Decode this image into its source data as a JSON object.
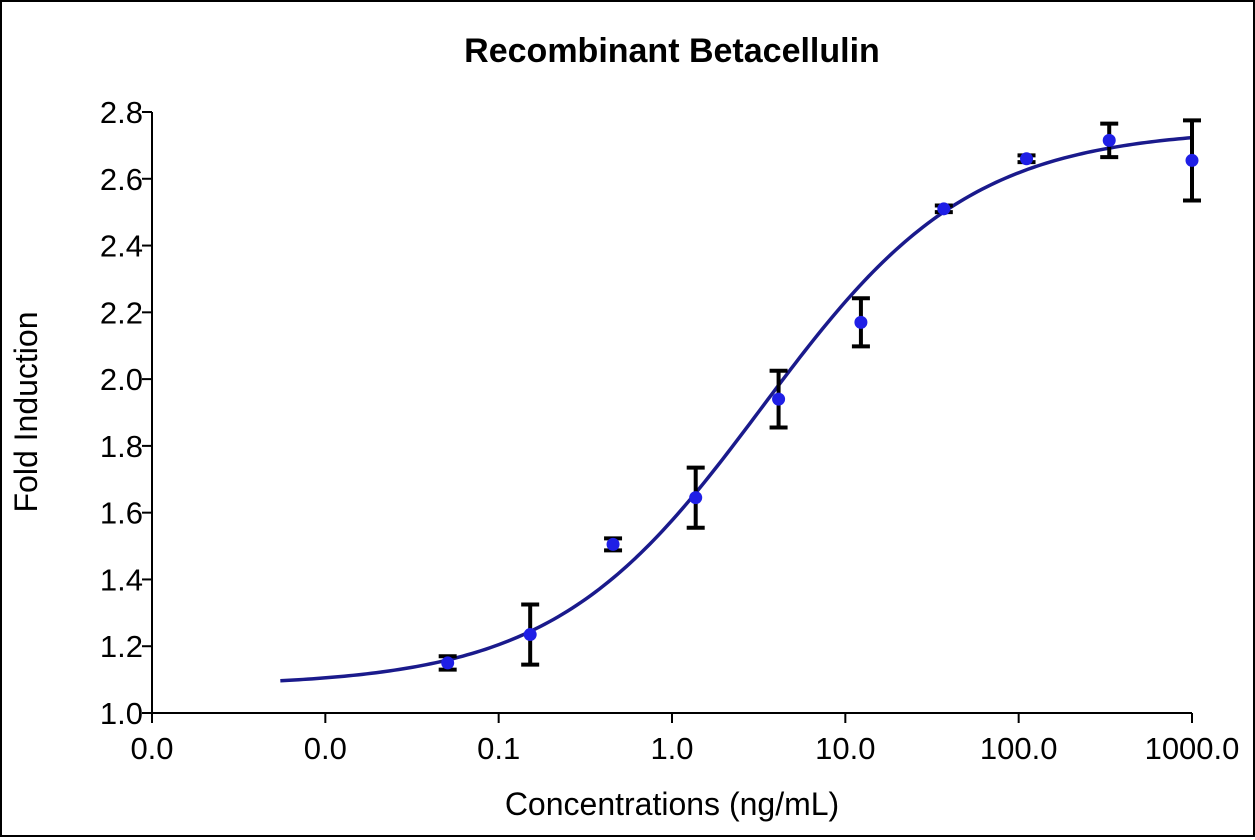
{
  "chart_data": {
    "type": "scatter",
    "title": "Recombinant Betacellulin",
    "xlabel": "Concentrations (ng/mL)",
    "ylabel": "Fold Induction",
    "x_scale": "log",
    "xlim": [
      0.001,
      1000
    ],
    "ylim": [
      1.0,
      2.8
    ],
    "x_ticks": [
      {
        "value": 0.001,
        "label": "0.0"
      },
      {
        "value": 0.01,
        "label": "0.0"
      },
      {
        "value": 0.1,
        "label": "0.1"
      },
      {
        "value": 1,
        "label": "1.0"
      },
      {
        "value": 10,
        "label": "10.0"
      },
      {
        "value": 100,
        "label": "100.0"
      },
      {
        "value": 1000,
        "label": "1000.0"
      }
    ],
    "y_ticks": [
      {
        "value": 1.0,
        "label": "1.0"
      },
      {
        "value": 1.2,
        "label": "1.2"
      },
      {
        "value": 1.4,
        "label": "1.4"
      },
      {
        "value": 1.6,
        "label": "1.6"
      },
      {
        "value": 1.8,
        "label": "1.8"
      },
      {
        "value": 2.0,
        "label": "2.0"
      },
      {
        "value": 2.2,
        "label": "2.2"
      },
      {
        "value": 2.4,
        "label": "2.4"
      },
      {
        "value": 2.6,
        "label": "2.6"
      },
      {
        "value": 2.8,
        "label": "2.8"
      }
    ],
    "grid": false,
    "legend": "none",
    "points": [
      {
        "x": 0.0508,
        "y": 1.15,
        "err": 0.02
      },
      {
        "x": 0.152,
        "y": 1.235,
        "err": 0.09
      },
      {
        "x": 0.457,
        "y": 1.505,
        "err": 0.018
      },
      {
        "x": 1.37,
        "y": 1.645,
        "err": 0.09
      },
      {
        "x": 4.12,
        "y": 1.94,
        "err": 0.085
      },
      {
        "x": 12.3,
        "y": 2.17,
        "err": 0.072
      },
      {
        "x": 37.0,
        "y": 2.51,
        "err": 0.01
      },
      {
        "x": 111,
        "y": 2.66,
        "err": 0.01
      },
      {
        "x": 333,
        "y": 2.715,
        "err": 0.05
      },
      {
        "x": 1000,
        "y": 2.655,
        "err": 0.12
      }
    ],
    "fit": {
      "model": "4PL",
      "bottom": 1.08,
      "top": 2.75,
      "ec50": 3.3,
      "hill": 0.72,
      "x_range": [
        0.0055,
        1000
      ]
    },
    "colors": {
      "points": "#1f1fe6",
      "fit_line": "#1a1a8c",
      "error_bars": "#000000",
      "axes": "#000000"
    }
  }
}
